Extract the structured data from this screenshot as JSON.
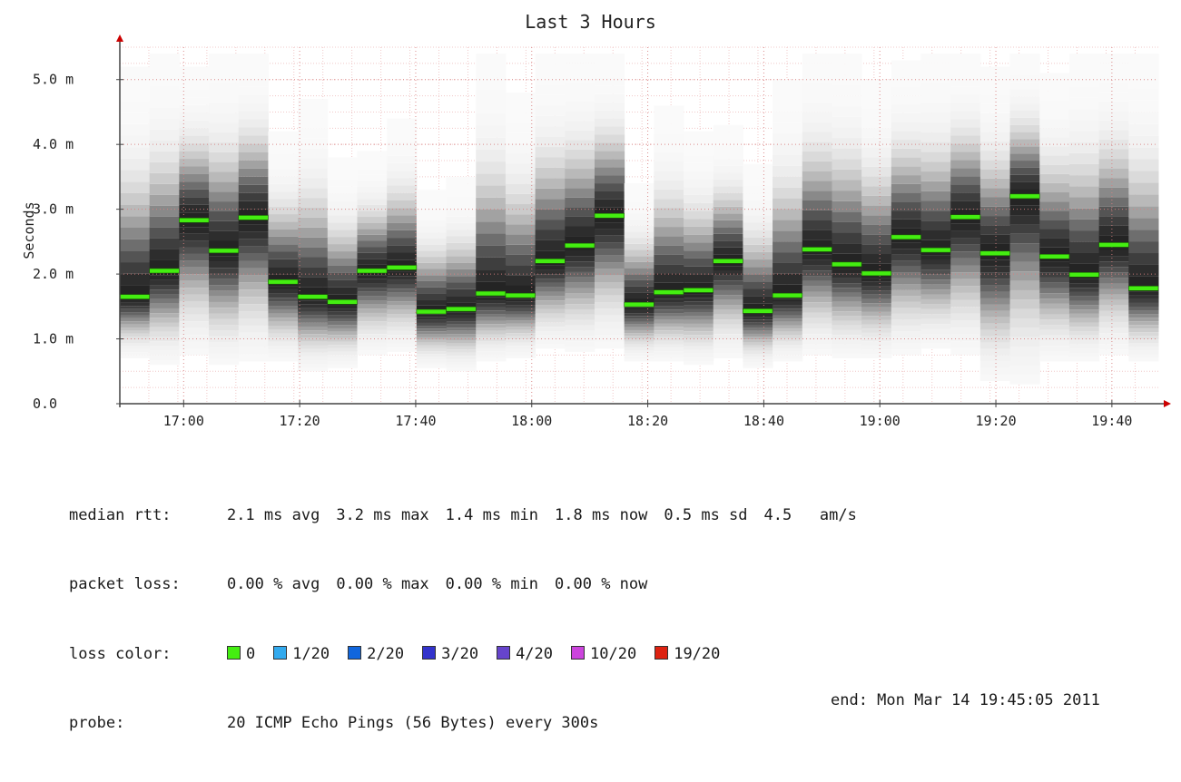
{
  "chart_data": {
    "type": "heatmap",
    "title": "Last 3 Hours",
    "ylabel": "Seconds",
    "xlabel": "",
    "ylim": [
      0,
      5.5
    ],
    "yticks": [
      "0.0",
      "1.0 m",
      "2.0 m",
      "3.0 m",
      "4.0 m",
      "5.0 m"
    ],
    "ytick_values": [
      0,
      1,
      2,
      3,
      4,
      5
    ],
    "xticks": [
      "17:00",
      "17:20",
      "17:40",
      "18:00",
      "18:20",
      "18:40",
      "19:00",
      "19:20",
      "19:40"
    ],
    "x_domain": [
      "16:49",
      "19:48"
    ],
    "grid": true,
    "median_rtt_ms": [
      1.65,
      2.05,
      2.83,
      2.36,
      2.87,
      1.88,
      1.65,
      1.57,
      2.05,
      2.1,
      1.42,
      1.46,
      1.7,
      1.67,
      2.2,
      2.44,
      2.9,
      1.53,
      1.72,
      1.75,
      2.2,
      1.43,
      1.67,
      2.38,
      2.15,
      2.01,
      2.57,
      2.37,
      2.88,
      2.32,
      3.2,
      2.27,
      1.99,
      2.45,
      1.78
    ],
    "max_rtt_ms": [
      5.2,
      5.4,
      5.2,
      5.4,
      5.4,
      4.2,
      4.7,
      3.8,
      3.9,
      4.4,
      3.3,
      3.5,
      5.4,
      4.8,
      5.4,
      5.4,
      5.4,
      3.4,
      4.6,
      4.2,
      4.3,
      3.7,
      5.0,
      5.4,
      5.4,
      5.0,
      5.3,
      5.4,
      5.4,
      5.2,
      5.4,
      5.1,
      5.4,
      5.4,
      5.4
    ],
    "min_rtt_ms": [
      0.7,
      0.6,
      0.75,
      0.6,
      0.65,
      0.65,
      0.5,
      0.55,
      0.75,
      0.8,
      0.55,
      0.5,
      0.65,
      0.7,
      0.85,
      0.8,
      0.85,
      0.65,
      0.65,
      0.6,
      0.7,
      0.55,
      0.65,
      0.75,
      0.7,
      0.7,
      0.75,
      0.85,
      0.75,
      0.35,
      0.3,
      0.65,
      0.65,
      0.75,
      0.65
    ],
    "loss_color": "#44ee11"
  },
  "legend": {
    "median": {
      "label": "median rtt:",
      "avg": "2.1 ms avg",
      "max": "3.2 ms max",
      "min": "1.4 ms min",
      "now": "1.8 ms now",
      "sd": "0.5 ms sd",
      "am": "4.5   am/s"
    },
    "loss": {
      "label": "packet loss:",
      "avg": "0.00 % avg",
      "max": "0.00 % max",
      "min": "0.00 % min",
      "now": "0.00 % now"
    },
    "loss_color": {
      "label": "loss color:",
      "items": [
        {
          "text": "0",
          "color": "#44ee11"
        },
        {
          "text": "1/20",
          "color": "#33aaee"
        },
        {
          "text": "2/20",
          "color": "#1166dd"
        },
        {
          "text": "3/20",
          "color": "#3333cc"
        },
        {
          "text": "4/20",
          "color": "#6644cc"
        },
        {
          "text": "10/20",
          "color": "#cc44dd"
        },
        {
          "text": "19/20",
          "color": "#dd2211"
        }
      ]
    },
    "probe": {
      "label": "probe:",
      "text": "20 ICMP Echo Pings (56 Bytes) every 300s",
      "end": "end: Mon Mar 14 19:45:05 2011"
    }
  }
}
